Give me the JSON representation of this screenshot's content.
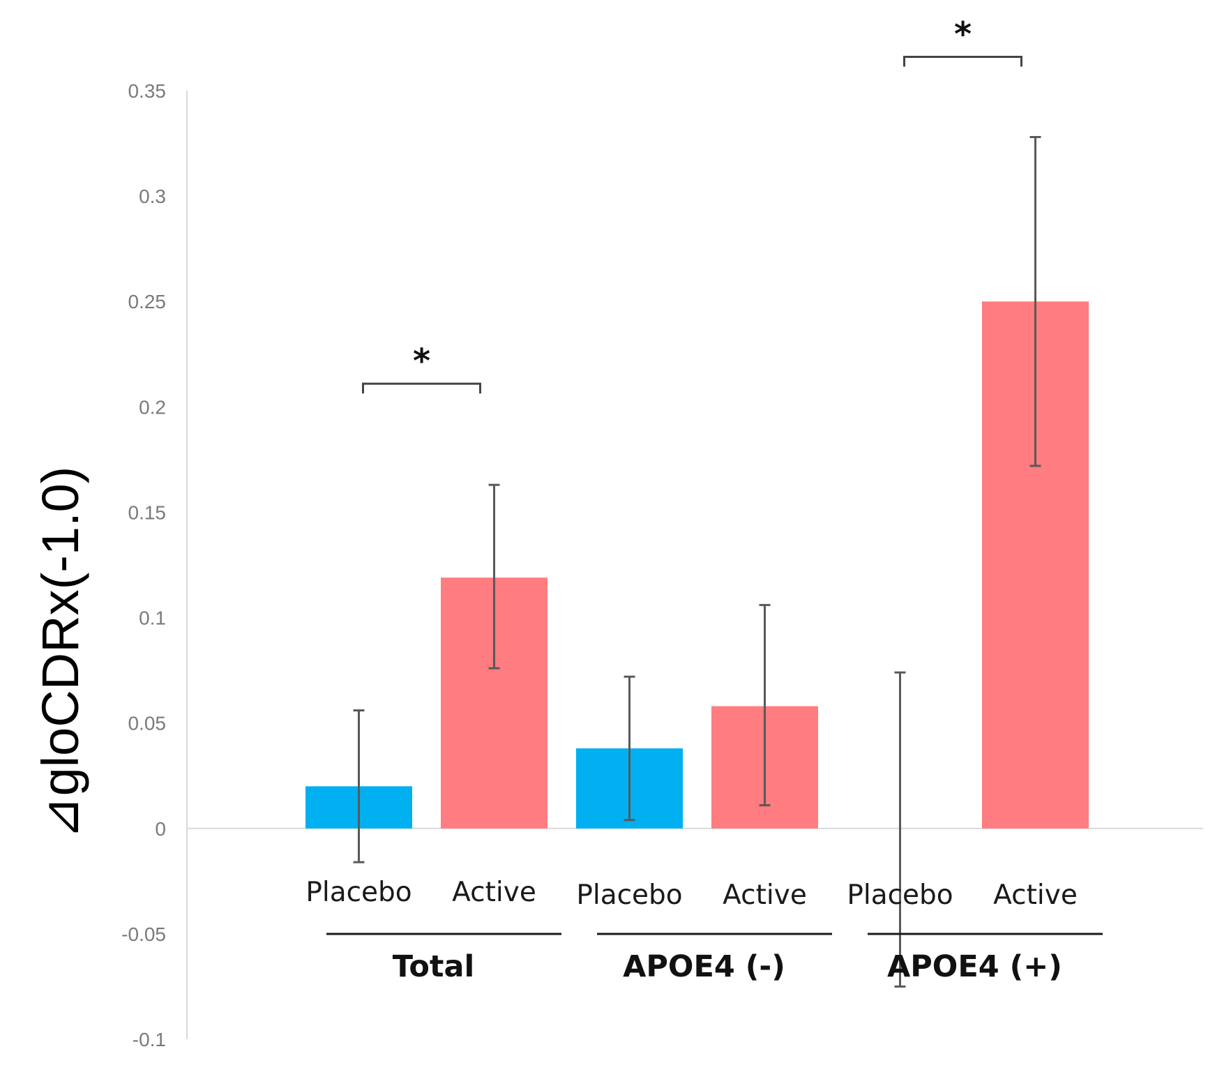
{
  "chart_data": {
    "type": "bar",
    "title": "",
    "xlabel": "",
    "ylabel": "⊿gloCDRx(-1.0)",
    "ylim": [
      -0.1,
      0.35
    ],
    "yticks": [
      0.35,
      0.3,
      0.25,
      0.2,
      0.15,
      0.1,
      0.05,
      0,
      -0.05,
      -0.1
    ],
    "ytick_labels": [
      "0.35",
      "0.3",
      "0.25",
      "0.2",
      "0.15",
      "0.1",
      "0.05",
      "0",
      "-0.05",
      "-0.1"
    ],
    "grid": false,
    "legend": "none",
    "groups": [
      {
        "name": "Total",
        "bars": [
          {
            "label": "Placebo",
            "value": 0.02,
            "err_low": -0.016,
            "err_high": 0.056,
            "color": "#00b0f0"
          },
          {
            "label": "Active",
            "value": 0.119,
            "err_low": 0.076,
            "err_high": 0.163,
            "color": "#ff7c80"
          }
        ],
        "significance": "*"
      },
      {
        "name": "APOE4 (-)",
        "bars": [
          {
            "label": "Placebo",
            "value": 0.038,
            "err_low": 0.004,
            "err_high": 0.072,
            "color": "#00b0f0"
          },
          {
            "label": "Active",
            "value": 0.058,
            "err_low": 0.011,
            "err_high": 0.106,
            "color": "#ff7c80"
          }
        ],
        "significance": ""
      },
      {
        "name": "APOE4 (+)",
        "bars": [
          {
            "label": "Placebo",
            "value": 0.0,
            "err_low": -0.075,
            "err_high": 0.074,
            "color": "#00b0f0"
          },
          {
            "label": "Active",
            "value": 0.25,
            "err_low": 0.172,
            "err_high": 0.328,
            "color": "#ff7c80"
          }
        ],
        "significance": "*"
      }
    ]
  }
}
